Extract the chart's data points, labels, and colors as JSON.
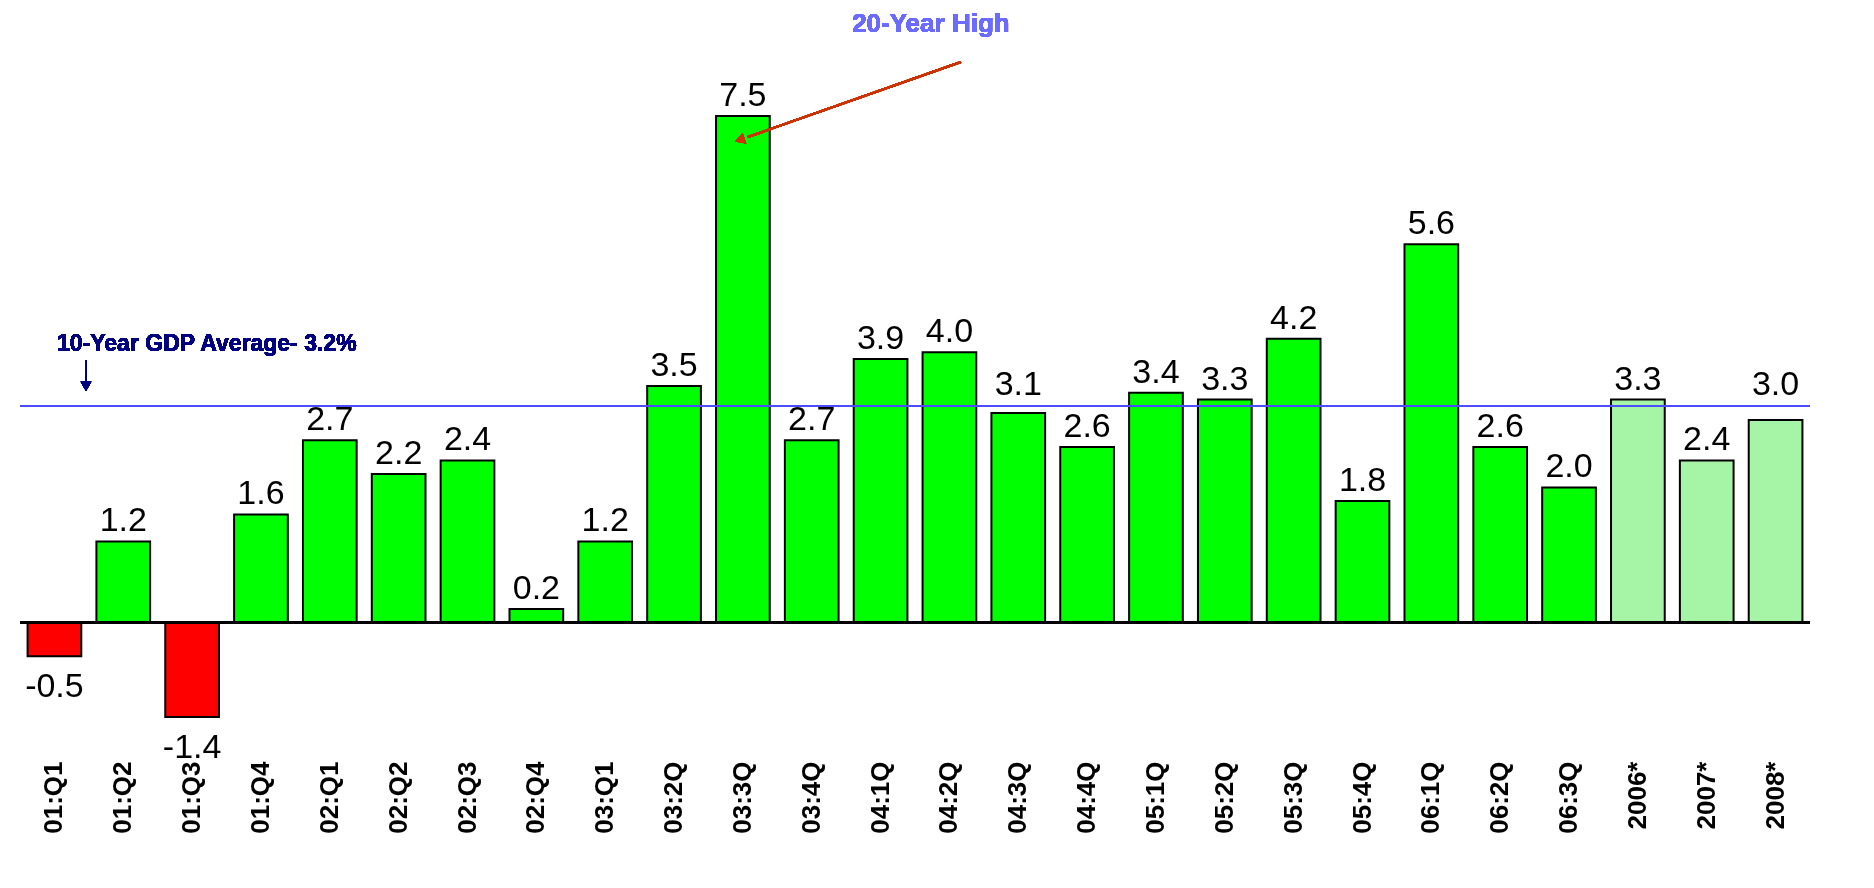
{
  "chart_data": {
    "type": "bar",
    "categories": [
      "01:Q1",
      "01:Q2",
      "01:Q3",
      "01:Q4",
      "02:Q1",
      "02:Q2",
      "02:Q3",
      "02:Q4",
      "03:Q1",
      "03:2Q",
      "03:3Q",
      "03:4Q",
      "04:1Q",
      "04:2Q",
      "04:3Q",
      "04:4Q",
      "05:1Q",
      "05:2Q",
      "05:3Q",
      "05:4Q",
      "06:1Q",
      "06:2Q",
      "06:3Q",
      "2006*",
      "2007*",
      "2008*"
    ],
    "values": [
      -0.5,
      1.2,
      -1.4,
      1.6,
      2.7,
      2.2,
      2.4,
      0.2,
      1.2,
      3.5,
      7.5,
      2.7,
      3.9,
      4.0,
      3.1,
      2.6,
      3.4,
      3.3,
      4.2,
      1.8,
      5.6,
      2.6,
      2.0,
      3.3,
      2.4,
      3.0
    ],
    "value_labels": [
      "-0.5",
      "1.2",
      "-1.4",
      "1.6",
      "2.7",
      "2.2",
      "2.4",
      "0.2",
      "1.2",
      "3.5",
      "7.5",
      "2.7",
      "3.9",
      "4.0",
      "3.1",
      "2.6",
      "3.4",
      "3.3",
      "4.2",
      "1.8",
      "5.6",
      "2.6",
      "2.0",
      "3.3",
      "2.4",
      "3.0"
    ],
    "colors": [
      "#ff0000",
      "#00ff00",
      "#ff0000",
      "#00ff00",
      "#00ff00",
      "#00ff00",
      "#00ff00",
      "#00ff00",
      "#00ff00",
      "#00ff00",
      "#00ff00",
      "#00ff00",
      "#00ff00",
      "#00ff00",
      "#00ff00",
      "#00ff00",
      "#00ff00",
      "#00ff00",
      "#00ff00",
      "#00ff00",
      "#00ff00",
      "#00ff00",
      "#00ff00",
      "#a6f5a6",
      "#a6f5a6",
      "#a6f5a6"
    ],
    "ref_lines": [
      {
        "axis": "y",
        "value": 3.2,
        "label": "10-Year GDP Average- 3.2%",
        "color": "#4d4dff"
      }
    ],
    "annotations": [
      "20-Year High"
    ]
  }
}
